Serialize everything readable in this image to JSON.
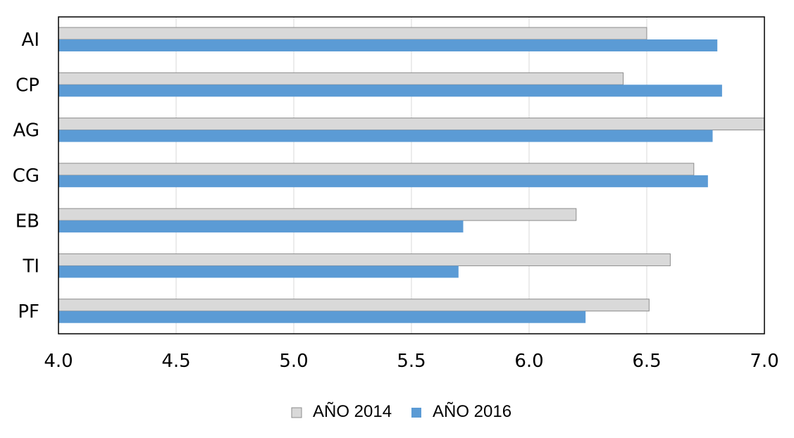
{
  "chart_data": {
    "type": "bar",
    "orientation": "horizontal",
    "categories": [
      "AI",
      "CP",
      "AG",
      "CG",
      "EB",
      "TI",
      "PF"
    ],
    "series": [
      {
        "name": "AÑO 2014",
        "color": "#d9d9d9",
        "values": [
          6.5,
          6.4,
          7.0,
          6.7,
          6.2,
          6.6,
          6.51
        ]
      },
      {
        "name": "AÑO 2016",
        "color": "#5b9bd5",
        "values": [
          6.8,
          6.82,
          6.78,
          6.76,
          5.72,
          5.7,
          6.24
        ]
      }
    ],
    "xlim": [
      4.0,
      7.0
    ],
    "xticks": [
      "4.0",
      "4.5",
      "5.0",
      "5.5",
      "6.0",
      "6.5",
      "7.0"
    ],
    "grid": true,
    "legend_position": "bottom"
  }
}
